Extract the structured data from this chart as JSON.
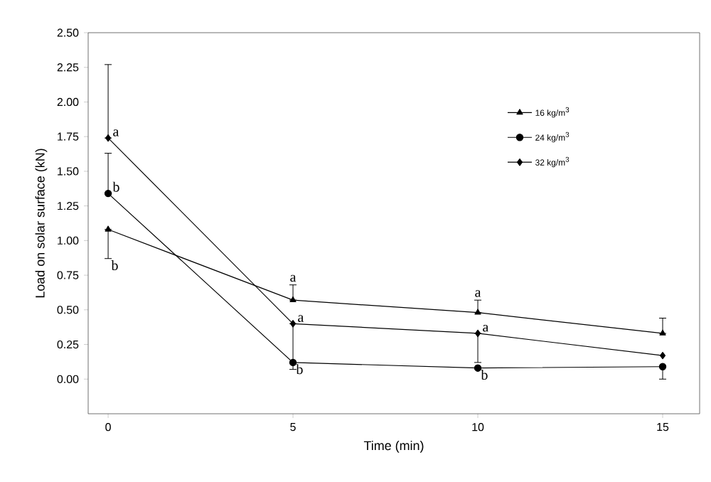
{
  "chart_data": {
    "type": "line",
    "xlabel": "Time (min)",
    "ylabel": "Load on solar surface (kN)",
    "x": [
      0,
      5,
      10,
      15
    ],
    "xlim": [
      -0.54,
      16
    ],
    "xticks": [
      0,
      5,
      10,
      15
    ],
    "ylim": [
      -0.25,
      2.5
    ],
    "yticks": [
      {
        "value": 0,
        "label": "0.00"
      },
      {
        "value": 0.25,
        "label": "0.25"
      },
      {
        "value": 0.5,
        "label": "0.50"
      },
      {
        "value": 0.75,
        "label": "0.75"
      },
      {
        "value": 1,
        "label": "1.00"
      },
      {
        "value": 1.25,
        "label": "1.25"
      },
      {
        "value": 1.5,
        "label": "1.50"
      },
      {
        "value": 1.75,
        "label": "1.75"
      },
      {
        "value": 2,
        "label": "2.00"
      },
      {
        "value": 2.25,
        "label": "2.25"
      },
      {
        "value": 2.5,
        "label": "2.50"
      }
    ],
    "legend": "top right",
    "grid": false,
    "series": [
      {
        "name": "16 kg/m$^{3}$",
        "color": "#000000",
        "marker": "triangle",
        "values": [
          1.08,
          0.57,
          0.48,
          0.33
        ],
        "errors": [
          [
            0.87,
            1.08
          ],
          [
            0.57,
            0.68
          ],
          [
            0.48,
            0.57
          ],
          [
            0.33,
            0.44
          ]
        ]
      },
      {
        "name": "24 kg/m$^{3}$",
        "color": "#000000",
        "marker": "circle",
        "values": [
          1.34,
          0.12,
          0.08,
          0.09
        ],
        "errors": [
          [
            1.34,
            1.63
          ],
          null,
          null,
          [
            0.0,
            0.09
          ]
        ]
      },
      {
        "name": "32 kg/m$^{3}$",
        "color": "#000000",
        "marker": "diamond",
        "values": [
          1.74,
          0.4,
          0.33,
          0.17
        ],
        "errors": [
          [
            1.74,
            2.27
          ],
          [
            0.07,
            0.4
          ],
          [
            0.12,
            0.33
          ],
          null
        ]
      }
    ],
    "annotations": [
      {
        "text": "a",
        "x": 0,
        "y": 1.74
      },
      {
        "text": "b",
        "x": 0,
        "y": 1.34
      },
      {
        "text": "b",
        "x": 0,
        "y": 0.87
      },
      {
        "text": "a",
        "x": 5,
        "y": 0.68
      },
      {
        "text": "a",
        "x": 5,
        "y": 0.4
      },
      {
        "text": "b",
        "x": 5,
        "y": 0.12
      },
      {
        "text": "a",
        "x": 10,
        "y": 0.57
      },
      {
        "text": "a",
        "x": 10,
        "y": 0.33
      },
      {
        "text": "b",
        "x": 10,
        "y": 0.08
      }
    ]
  }
}
